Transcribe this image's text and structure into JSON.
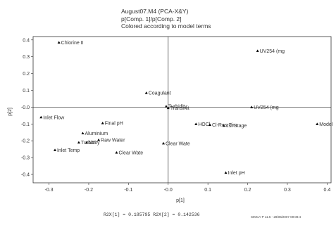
{
  "chart_data": {
    "type": "scatter",
    "title_lines": [
      "August07.M4 (PCA-X&Y)",
      "p[Comp. 1]/p[Comp. 2]",
      "Colored according to model terms"
    ],
    "xlabel": "p[1]",
    "ylabel": "p[2]",
    "xlim": [
      -0.34,
      0.41
    ],
    "ylim": [
      -0.45,
      0.42
    ],
    "xticks": [
      -0.3,
      -0.2,
      -0.1,
      0.0,
      0.1,
      0.2,
      0.3,
      0.4
    ],
    "xtick_labels": [
      "-0.3",
      "-0.2",
      "-0.1",
      "-0.0",
      "0.1",
      "0.2",
      "0.3",
      "0.4"
    ],
    "yticks": [
      0.4,
      0.3,
      0.2,
      0.1,
      0.0,
      -0.1,
      -0.2,
      -0.3,
      -0.4
    ],
    "ytick_labels": [
      "0.4",
      "0.3",
      "0.2",
      "0.1",
      "-0.0",
      "-0.1",
      "-0.2",
      "-0.3",
      "-0.4"
    ],
    "grid": false,
    "reference_lines": {
      "x": 0,
      "y": 0
    },
    "marker_color": "#000000",
    "points": [
      {
        "label": "Chlorine II",
        "x": -0.275,
        "y": 0.385
      },
      {
        "label": "UV254 (mg",
        "x": 0.225,
        "y": 0.335
      },
      {
        "label": "Coagulant",
        "x": -0.055,
        "y": 0.085
      },
      {
        "label": "Turbidity",
        "x": -0.005,
        "y": 0.005
      },
      {
        "label": "Transmit",
        "x": 0.0,
        "y": -0.005
      },
      {
        "label": "UV254 (mg",
        "x": 0.21,
        "y": 0.0
      },
      {
        "label": "Inlet Flow",
        "x": -0.32,
        "y": -0.06
      },
      {
        "label": "Final pH",
        "x": -0.165,
        "y": -0.095
      },
      {
        "label": "HOCl",
        "x": 0.07,
        "y": -0.1
      },
      {
        "label": "Cl-Res-Tim",
        "x": 0.105,
        "y": -0.105
      },
      {
        "label": "1st Stage",
        "x": 0.14,
        "y": -0.11
      },
      {
        "label": "Model",
        "x": 0.375,
        "y": -0.1
      },
      {
        "label": "Aluminium",
        "x": -0.215,
        "y": -0.155
      },
      {
        "label": "Raw Water",
        "x": -0.175,
        "y": -0.195
      },
      {
        "label": "Turbidity",
        "x": -0.225,
        "y": -0.21
      },
      {
        "label": "Mn",
        "x": -0.205,
        "y": -0.21
      },
      {
        "label": "Clear Wate",
        "x": -0.012,
        "y": -0.215
      },
      {
        "label": "Inlet Temp",
        "x": -0.285,
        "y": -0.255
      },
      {
        "label": "Clear Wate",
        "x": -0.13,
        "y": -0.27
      },
      {
        "label": "Inlet pH",
        "x": 0.145,
        "y": -0.39
      }
    ]
  },
  "footer": {
    "r2x_text": "R2X[1] = 0.185795  R2X[2] = 0.142536",
    "credit_text": "SIMCA-P 11.5 - 28/08/2007 09:08:4"
  }
}
